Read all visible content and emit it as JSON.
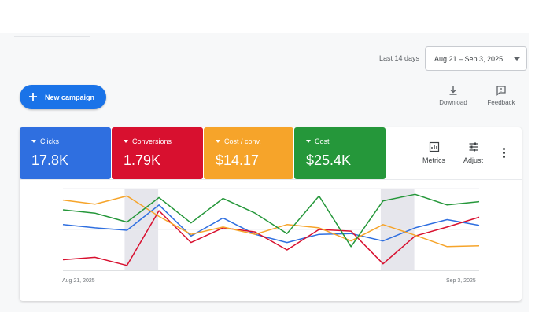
{
  "header": {
    "date_range_label": "Last 14 days",
    "date_range_value": "Aug 21 – Sep 3, 2025"
  },
  "toolbar": {
    "new_campaign_label": "New campaign",
    "download_label": "Download",
    "feedback_label": "Feedback"
  },
  "metric_tiles": [
    {
      "label": "Clicks",
      "value": "17.8K",
      "color": "#2f6fe0"
    },
    {
      "label": "Conversions",
      "value": "1.79K",
      "color": "#d8102f"
    },
    {
      "label": "Cost / conv.",
      "value": "$14.17",
      "color": "#f6a42a"
    },
    {
      "label": "Cost",
      "value": "$25.4K",
      "color": "#25973a"
    }
  ],
  "card_tools": {
    "metrics_label": "Metrics",
    "adjust_label": "Adjust"
  },
  "chart_data": {
    "type": "line",
    "x_start_label": "Aug 21, 2025",
    "x_end_label": "Sep 3, 2025",
    "grid": true,
    "highlight_ranges": [
      [
        2,
        3
      ],
      [
        10,
        11
      ]
    ],
    "series": [
      {
        "color": "#2f6fe0",
        "values": [
          0.56,
          0.52,
          0.49,
          0.8,
          0.42,
          0.64,
          0.44,
          0.34,
          0.44,
          0.45,
          0.36,
          0.52,
          0.62,
          0.55
        ]
      },
      {
        "color": "#d8102f",
        "values": [
          0.13,
          0.16,
          0.06,
          0.73,
          0.34,
          0.52,
          0.47,
          0.25,
          0.5,
          0.48,
          0.08,
          0.42,
          0.53,
          0.65
        ]
      },
      {
        "color": "#f6a42a",
        "values": [
          0.86,
          0.81,
          0.91,
          0.66,
          0.44,
          0.53,
          0.44,
          0.56,
          0.52,
          0.36,
          0.56,
          0.43,
          0.29,
          0.3
        ]
      },
      {
        "color": "#25973a",
        "values": [
          0.74,
          0.7,
          0.59,
          0.89,
          0.58,
          0.88,
          0.7,
          0.45,
          0.91,
          0.29,
          0.85,
          0.93,
          0.8,
          0.84
        ]
      }
    ]
  }
}
